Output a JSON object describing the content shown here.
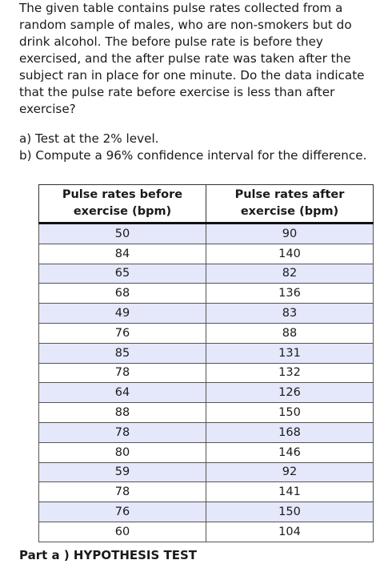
{
  "problem": {
    "intro": "The given table contains pulse rates collected from a random sample of males, who are non-smokers but do drink alcohol. The before pulse rate is before they exercised, and the after pulse rate was taken after the subject ran in place for one minute. Do the data indicate that the pulse rate before exercise is less than after exercise?",
    "part_a": "a) Test at the 2% level.",
    "part_b": "b) Compute a 96% confidence interval for the difference."
  },
  "table": {
    "headers": [
      "Pulse rates before exercise (bpm)",
      "Pulse rates after exercise (bpm)"
    ],
    "rows": [
      [
        "50",
        "90"
      ],
      [
        "84",
        "140"
      ],
      [
        "65",
        "82"
      ],
      [
        "68",
        "136"
      ],
      [
        "49",
        "83"
      ],
      [
        "76",
        "88"
      ],
      [
        "85",
        "131"
      ],
      [
        "78",
        "132"
      ],
      [
        "64",
        "126"
      ],
      [
        "88",
        "150"
      ],
      [
        "78",
        "168"
      ],
      [
        "80",
        "146"
      ],
      [
        "59",
        "92"
      ],
      [
        "78",
        "141"
      ],
      [
        "76",
        "150"
      ],
      [
        "60",
        "104"
      ]
    ]
  },
  "section": {
    "part_a_heading": "Part a ) HYPOTHESIS TEST"
  }
}
